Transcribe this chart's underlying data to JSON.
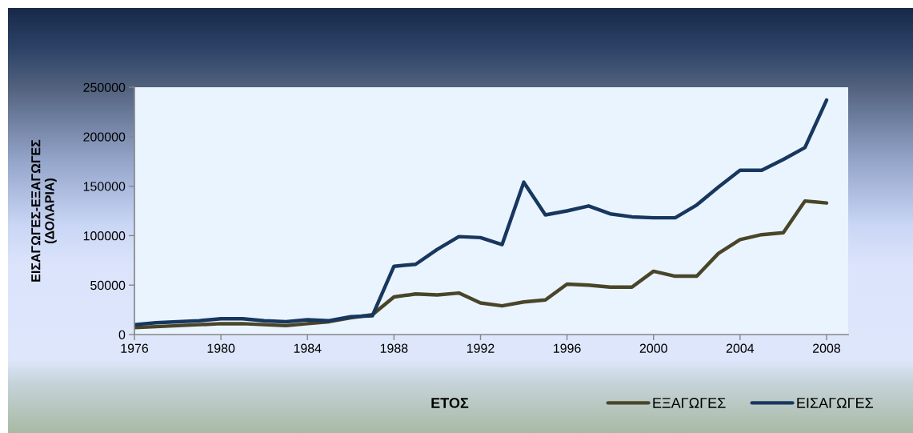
{
  "chart_data": {
    "type": "line",
    "xlabel": "ΕΤΟΣ",
    "ylabel": "ΕΙΣΑΓΩΓΕΣ-ΕΞΑΓΩΓΕΣ\n(ΔΟΛΑΡΙΑ)",
    "x": [
      1976,
      1977,
      1978,
      1979,
      1980,
      1981,
      1982,
      1983,
      1984,
      1985,
      1986,
      1987,
      1988,
      1989,
      1990,
      1991,
      1992,
      1993,
      1994,
      1995,
      1996,
      1997,
      1998,
      1999,
      2000,
      2001,
      2002,
      2003,
      2004,
      2005,
      2006,
      2007,
      2008
    ],
    "xlim": [
      1976,
      2009
    ],
    "xticks": [
      1976,
      1980,
      1984,
      1988,
      1992,
      1996,
      2000,
      2004,
      2008
    ],
    "ylim": [
      0,
      250000
    ],
    "yticks": [
      0,
      50000,
      100000,
      150000,
      200000,
      250000
    ],
    "legend": "bottom right",
    "series": [
      {
        "name": "ΕΞΑΓΩΓΕΣ",
        "color": "#494529",
        "values": [
          7000,
          8000,
          9000,
          10000,
          11000,
          11000,
          10000,
          9000,
          11000,
          13000,
          17000,
          20000,
          38000,
          41000,
          40000,
          42000,
          32000,
          29000,
          33000,
          35000,
          51000,
          50000,
          48000,
          48000,
          64000,
          59000,
          59000,
          82000,
          96000,
          101000,
          103000,
          135000,
          133000
        ]
      },
      {
        "name": "ΕΙΣΑΓΩΓΕΣ",
        "color": "#17375e",
        "values": [
          10000,
          12000,
          13000,
          14000,
          16000,
          16000,
          14000,
          13000,
          15000,
          14000,
          18000,
          19000,
          69000,
          71000,
          86000,
          99000,
          98000,
          91000,
          154000,
          121000,
          125000,
          130000,
          122000,
          119000,
          118000,
          118000,
          131000,
          149000,
          166000,
          166000,
          177000,
          189000,
          237000
        ]
      }
    ]
  }
}
